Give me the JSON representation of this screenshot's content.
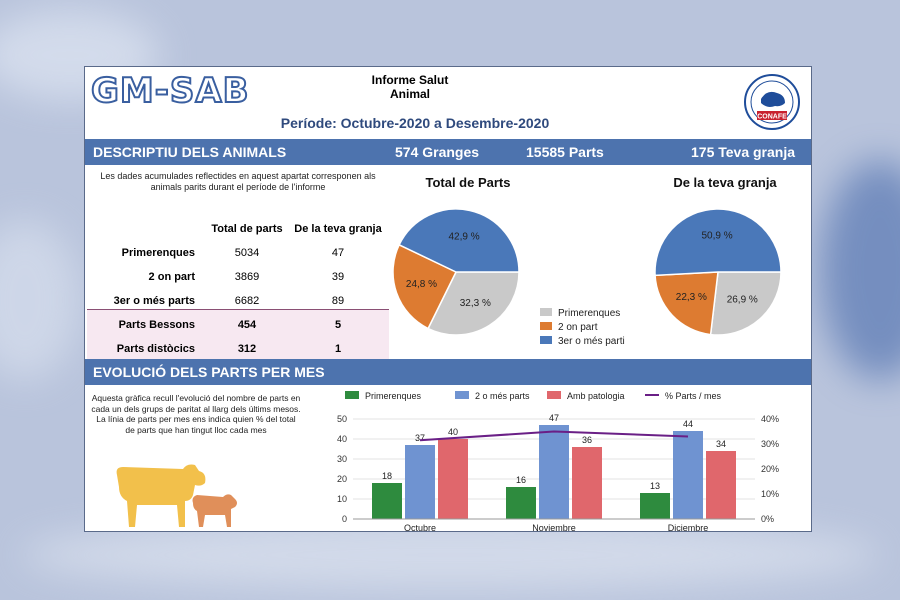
{
  "header": {
    "logo_text": "GM-SAB",
    "title_line1": "Informe Salut",
    "title_line2": "Animal",
    "period": "Període: Octubre-2020 a Desembre-2020",
    "seal_text": "CONAFE"
  },
  "section1": {
    "title": "DESCRIPTIU DELS ANIMALS",
    "granges": "574 Granges",
    "parts": "15585 Parts",
    "teva_granja": "175 Teva granja",
    "description": "Les dades acumulades reflectides en aquest apartat corresponen als animals parits durant el període de l'informe",
    "table": {
      "headers": [
        "",
        "Total de parts",
        "De la teva granja"
      ],
      "rows": [
        [
          "Primerenques",
          "5034",
          "47"
        ],
        [
          "2 on part",
          "3869",
          "39"
        ],
        [
          "3er o més parts",
          "6682",
          "89"
        ],
        [
          "Parts Bessons",
          "454",
          "5"
        ],
        [
          "Parts distòcics",
          "312",
          "1"
        ]
      ]
    },
    "pie_total_title": "Total de Parts",
    "pie_granja_title": "De la teva granja"
  },
  "section2": {
    "title": "EVOLUCIÓ DELS PARTS PER MES",
    "description": "Aquesta gràfica recull l'evolució del nombre de parts en cada un dels grups de paritat al llarg dels últims mesos. La línia de parts per mes ens indica quien % del total de parts que han tingut lloc cada mes"
  },
  "colors": {
    "band": "#4d73ae",
    "pie_blue": "#4a78b9",
    "pie_orange": "#dd7b31",
    "pie_gray": "#c9c9c9",
    "bar_green": "#2e8b3e",
    "bar_blue": "#6f93d1",
    "bar_red": "#e0676c",
    "line_purple": "#6a1f86",
    "cow_yellow": "#f2c04b",
    "calf_orange": "#e08f5a"
  },
  "chart_data": [
    {
      "type": "pie",
      "title": "Total de Parts",
      "slices": [
        {
          "label": "Primerenques",
          "value": 32.3,
          "display": "32,3 %"
        },
        {
          "label": "2 on part",
          "value": 24.8,
          "display": "24,8 %"
        },
        {
          "label": "3er o més parti",
          "value": 42.9,
          "display": "42,9 %"
        }
      ],
      "legend": [
        "Primerenques",
        "2 on part",
        "3er o més parti"
      ]
    },
    {
      "type": "pie",
      "title": "De la teva granja",
      "slices": [
        {
          "label": "Primerenques",
          "value": 26.9,
          "display": "26,9 %"
        },
        {
          "label": "2 on part",
          "value": 22.3,
          "display": "22,3 %"
        },
        {
          "label": "3er o més parti",
          "value": 50.9,
          "display": "50,9 %"
        }
      ]
    },
    {
      "type": "bar",
      "categories": [
        "Octubre",
        "Noviembre",
        "Diciembre"
      ],
      "series": [
        {
          "name": "Primerenques",
          "values": [
            18,
            16,
            13
          ]
        },
        {
          "name": "2 o més parts",
          "values": [
            37,
            47,
            44
          ]
        },
        {
          "name": "Amb patologia",
          "values": [
            40,
            36,
            34
          ]
        }
      ],
      "line_series": {
        "name": "% Parts / mes",
        "values": [
          31.5,
          35,
          33
        ]
      },
      "ylim": [
        0,
        50
      ],
      "yticks": [
        0,
        10,
        20,
        30,
        40,
        50
      ],
      "y2lim": [
        0,
        40
      ],
      "y2ticks": [
        "0%",
        "10%",
        "20%",
        "30%",
        "40%"
      ],
      "legend_position": "top"
    }
  ]
}
